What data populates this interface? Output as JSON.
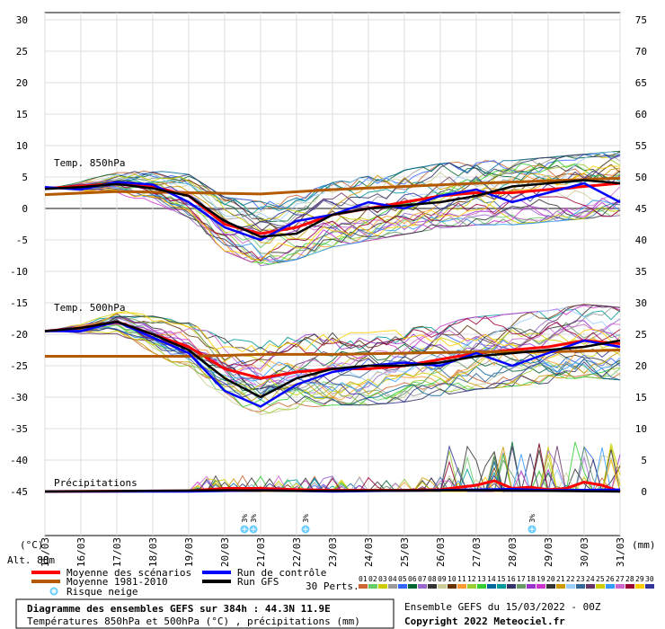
{
  "chart_data": {
    "type": "line",
    "title": "Diagramme des ensembles GEFS sur 384h : 44.3N 11.9E",
    "subtitle": "Températures 850hPa et 500hPa (°C) , précipitations (mm)",
    "run_info": "Ensemble GEFS du 15/03/2022 - 00Z",
    "copyright": "Copyright 2022 Meteociel.fr",
    "altitude": "Alt. 88m",
    "left_unit": "(°C)",
    "right_unit": "(mm)",
    "left_ticks": [
      "30",
      "25",
      "20",
      "15",
      "10",
      "5",
      "0",
      "-5",
      "-10",
      "-15",
      "-20",
      "-25",
      "-30",
      "-35",
      "-40",
      "-45"
    ],
    "left_tick_values": [
      30,
      25,
      20,
      15,
      10,
      5,
      0,
      -5,
      -10,
      -15,
      -20,
      -25,
      -30,
      -35,
      -40,
      -45
    ],
    "right_ticks": [
      "75",
      "70",
      "65",
      "60",
      "55",
      "50",
      "45",
      "40",
      "35",
      "30",
      "25",
      "20",
      "15",
      "10",
      "5",
      "0"
    ],
    "right_tick_values": [
      75,
      70,
      65,
      60,
      55,
      50,
      45,
      40,
      35,
      30,
      25,
      20,
      15,
      10,
      5,
      0
    ],
    "ylim": [
      -45,
      30
    ],
    "right_ylim": [
      0,
      75
    ],
    "x_dates": [
      "15/03",
      "16/03",
      "17/03",
      "18/03",
      "19/03",
      "20/03",
      "21/03",
      "22/03",
      "23/03",
      "24/03",
      "25/03",
      "26/03",
      "27/03",
      "28/03",
      "29/03",
      "30/03",
      "31/03"
    ],
    "x_range_days": [
      0,
      16
    ],
    "panel_labels": {
      "t850": "Temp. 850hPa",
      "t500": "Temp. 500hPa",
      "precip": "Précipitations"
    },
    "series": [
      {
        "name": "Moyenne des scénarios",
        "color": "#ff0000",
        "t850": [
          [
            0,
            3.2
          ],
          [
            1,
            3.5
          ],
          [
            2,
            4
          ],
          [
            3,
            3.5
          ],
          [
            4,
            2
          ],
          [
            5,
            -2.5
          ],
          [
            6,
            -4
          ],
          [
            7,
            -3
          ],
          [
            8,
            -1
          ],
          [
            9,
            0
          ],
          [
            10,
            1
          ],
          [
            11,
            2
          ],
          [
            12,
            2.5
          ],
          [
            13,
            2.5
          ],
          [
            14,
            3
          ],
          [
            15,
            3.5
          ],
          [
            16,
            4
          ]
        ],
        "t500": [
          [
            0,
            -19.5
          ],
          [
            1,
            -19
          ],
          [
            2,
            -18
          ],
          [
            3,
            -20
          ],
          [
            4,
            -22
          ],
          [
            5,
            -25.5
          ],
          [
            6,
            -27
          ],
          [
            7,
            -26
          ],
          [
            8,
            -25.5
          ],
          [
            9,
            -25.5
          ],
          [
            10,
            -25
          ],
          [
            11,
            -24
          ],
          [
            12,
            -23
          ],
          [
            13,
            -22.5
          ],
          [
            14,
            -22
          ],
          [
            15,
            -21
          ],
          [
            16,
            -21.5
          ]
        ],
        "precip": [
          [
            0,
            0
          ],
          [
            4,
            0.1
          ],
          [
            5,
            0.5
          ],
          [
            6,
            0.5
          ],
          [
            7,
            0.3
          ],
          [
            8,
            0.2
          ],
          [
            9,
            0.2
          ],
          [
            10,
            0.2
          ],
          [
            11,
            0.3
          ],
          [
            12,
            1
          ],
          [
            12.5,
            1.7
          ],
          [
            13,
            0.5
          ],
          [
            13.5,
            0.7
          ],
          [
            14,
            0.3
          ],
          [
            14.5,
            0.5
          ],
          [
            15,
            1.5
          ],
          [
            15.5,
            1
          ],
          [
            16,
            0
          ]
        ]
      },
      {
        "name": "Moyenne 1981-2010",
        "color": "#b35900",
        "t850": [
          [
            0,
            2.2
          ],
          [
            2,
            2.7
          ],
          [
            4,
            2.5
          ],
          [
            6,
            2.3
          ],
          [
            8,
            3
          ],
          [
            10,
            3.5
          ],
          [
            12,
            4
          ],
          [
            14,
            4.4
          ],
          [
            16,
            4.8
          ]
        ],
        "t500": [
          [
            0,
            -23.5
          ],
          [
            2,
            -23.5
          ],
          [
            4,
            -23.5
          ],
          [
            6,
            -23.2
          ],
          [
            8,
            -23.2
          ],
          [
            10,
            -23
          ],
          [
            12,
            -22.8
          ],
          [
            14,
            -22.8
          ],
          [
            16,
            -22.5
          ]
        ]
      },
      {
        "name": "Run de contrôle",
        "color": "#0000ff",
        "t850": [
          [
            0,
            3.4
          ],
          [
            1,
            3
          ],
          [
            2,
            4.2
          ],
          [
            3,
            3.8
          ],
          [
            4,
            1
          ],
          [
            5,
            -3
          ],
          [
            6,
            -5
          ],
          [
            7,
            -2
          ],
          [
            8,
            -1
          ],
          [
            9,
            1
          ],
          [
            10,
            0
          ],
          [
            11,
            2
          ],
          [
            12,
            3
          ],
          [
            13,
            1
          ],
          [
            14,
            2.5
          ],
          [
            15,
            4
          ],
          [
            16,
            1
          ]
        ],
        "t500": [
          [
            0,
            -19.5
          ],
          [
            1,
            -19.5
          ],
          [
            2,
            -18
          ],
          [
            3,
            -20.5
          ],
          [
            4,
            -23
          ],
          [
            5,
            -29
          ],
          [
            6,
            -31.5
          ],
          [
            7,
            -28
          ],
          [
            8,
            -26
          ],
          [
            9,
            -25
          ],
          [
            10,
            -24.5
          ],
          [
            11,
            -25
          ],
          [
            12,
            -23
          ],
          [
            13,
            -25
          ],
          [
            14,
            -23
          ],
          [
            15,
            -21
          ],
          [
            16,
            -22
          ]
        ],
        "precip": [
          [
            0,
            0
          ],
          [
            4,
            0
          ],
          [
            6,
            0.2
          ],
          [
            8,
            0
          ],
          [
            12,
            0.3
          ],
          [
            13,
            0.4
          ],
          [
            14,
            0.2
          ],
          [
            16,
            0.3
          ]
        ]
      },
      {
        "name": "Run GFS",
        "color": "#000000",
        "t850": [
          [
            0,
            3.1
          ],
          [
            1,
            3.4
          ],
          [
            2,
            3.9
          ],
          [
            3,
            3.2
          ],
          [
            4,
            2
          ],
          [
            5,
            -2
          ],
          [
            6,
            -4.5
          ],
          [
            7,
            -4
          ],
          [
            8,
            -1
          ],
          [
            9,
            0
          ],
          [
            10,
            0.5
          ],
          [
            11,
            1
          ],
          [
            12,
            2
          ],
          [
            13,
            3.5
          ],
          [
            14,
            4
          ],
          [
            15,
            4.5
          ],
          [
            16,
            4
          ]
        ],
        "t500": [
          [
            0,
            -19.5
          ],
          [
            1,
            -19
          ],
          [
            2,
            -18
          ],
          [
            3,
            -20
          ],
          [
            4,
            -22.5
          ],
          [
            5,
            -27
          ],
          [
            6,
            -30
          ],
          [
            7,
            -27
          ],
          [
            8,
            -25.5
          ],
          [
            9,
            -25
          ],
          [
            10,
            -25
          ],
          [
            11,
            -24.5
          ],
          [
            12,
            -23.5
          ],
          [
            13,
            -23
          ],
          [
            14,
            -22.5
          ],
          [
            15,
            -22
          ],
          [
            16,
            -21
          ]
        ],
        "precip": [
          [
            0,
            0
          ],
          [
            5,
            0.2
          ],
          [
            7,
            0.1
          ],
          [
            12,
            0.2
          ],
          [
            14,
            0.1
          ],
          [
            16,
            0
          ]
        ]
      }
    ],
    "snow_risk": [
      {
        "day": 5.55,
        "label": "3%"
      },
      {
        "day": 5.8,
        "label": "3%"
      },
      {
        "day": 7.25,
        "label": "3%"
      },
      {
        "day": 13.55,
        "label": "3%"
      }
    ],
    "legend": {
      "items": [
        {
          "label": "Moyenne des scénarios",
          "color": "#ff0000"
        },
        {
          "label": "Moyenne 1981-2010",
          "color": "#b35900"
        },
        {
          "label": "Run de contrôle",
          "color": "#0000ff"
        },
        {
          "label": "Run GFS",
          "color": "#000000"
        },
        {
          "label": "Risque neige",
          "color": "#66ccff"
        }
      ],
      "perturbations_label": "30 Perts.",
      "perturbation_numbers": [
        "01",
        "02",
        "03",
        "04",
        "05",
        "06",
        "07",
        "08",
        "09",
        "10",
        "11",
        "12",
        "13",
        "14",
        "15",
        "16",
        "17",
        "18",
        "19",
        "20",
        "21",
        "22",
        "23",
        "24",
        "25",
        "26",
        "27",
        "28",
        "29",
        "30"
      ],
      "perturbation_colors": [
        "#cc6633",
        "#66cc66",
        "#cccc00",
        "#999999",
        "#3366ff",
        "#006633",
        "#9966cc",
        "#333333",
        "#cccc99",
        "#663300",
        "#ff9933",
        "#99cc33",
        "#33cc33",
        "#006699",
        "#009999",
        "#333366",
        "#669966",
        "#9933cc",
        "#cc33cc",
        "#333333",
        "#cc9900",
        "#99ccff",
        "#336699",
        "#663366",
        "#cccc00",
        "#3399ff",
        "#cc66cc",
        "#990033",
        "#ffcc00",
        "#333399"
      ]
    },
    "grid": true,
    "legend_position": "bottom"
  }
}
